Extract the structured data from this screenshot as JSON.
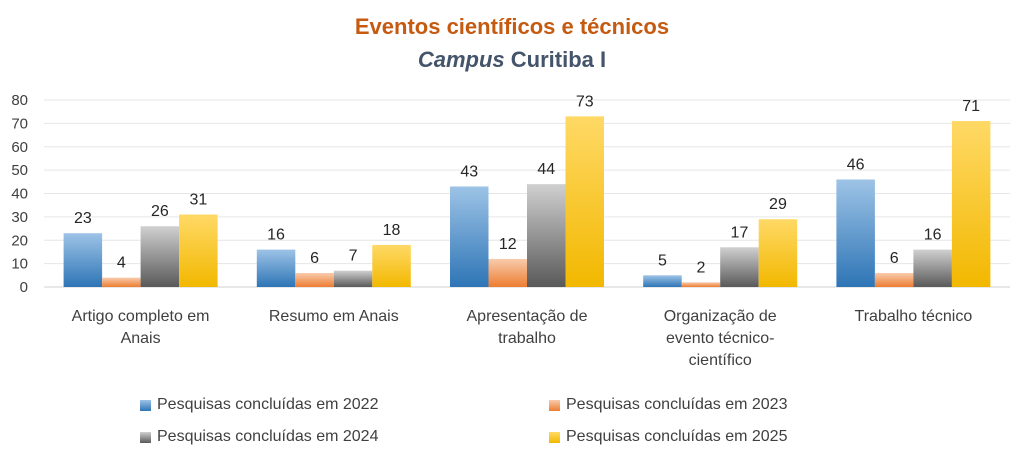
{
  "chart_data": {
    "type": "bar",
    "title": "Eventos científicos e técnicos",
    "subtitle_italic": "Campus",
    "subtitle_rest": "Curitiba I",
    "categories": [
      [
        "Artigo completo em",
        "Anais"
      ],
      [
        "Resumo em Anais"
      ],
      [
        "Apresentação de",
        "trabalho"
      ],
      [
        "Organização de",
        "evento técnico-",
        "científico"
      ],
      [
        "Trabalho técnico"
      ]
    ],
    "series": [
      {
        "name": "Pesquisas concluídas em 2022",
        "values": [
          23,
          16,
          43,
          5,
          46
        ],
        "color": "#2e75b6",
        "light": "#9dc3e6"
      },
      {
        "name": "Pesquisas concluídas em 2023",
        "values": [
          4,
          6,
          12,
          2,
          6
        ],
        "color": "#ed7d31",
        "light": "#f8cbad"
      },
      {
        "name": "Pesquisas concluídas em 2024",
        "values": [
          26,
          7,
          44,
          17,
          16
        ],
        "color": "#595959",
        "light": "#d0d0d0"
      },
      {
        "name": "Pesquisas concluídas em 2025",
        "values": [
          31,
          18,
          73,
          29,
          71
        ],
        "color": "#f2b800",
        "light": "#ffd966"
      }
    ],
    "yticks": [
      0,
      10,
      20,
      30,
      40,
      50,
      60,
      70,
      80
    ],
    "ylim": [
      0,
      80
    ],
    "grid": true,
    "legend": "bottom"
  }
}
